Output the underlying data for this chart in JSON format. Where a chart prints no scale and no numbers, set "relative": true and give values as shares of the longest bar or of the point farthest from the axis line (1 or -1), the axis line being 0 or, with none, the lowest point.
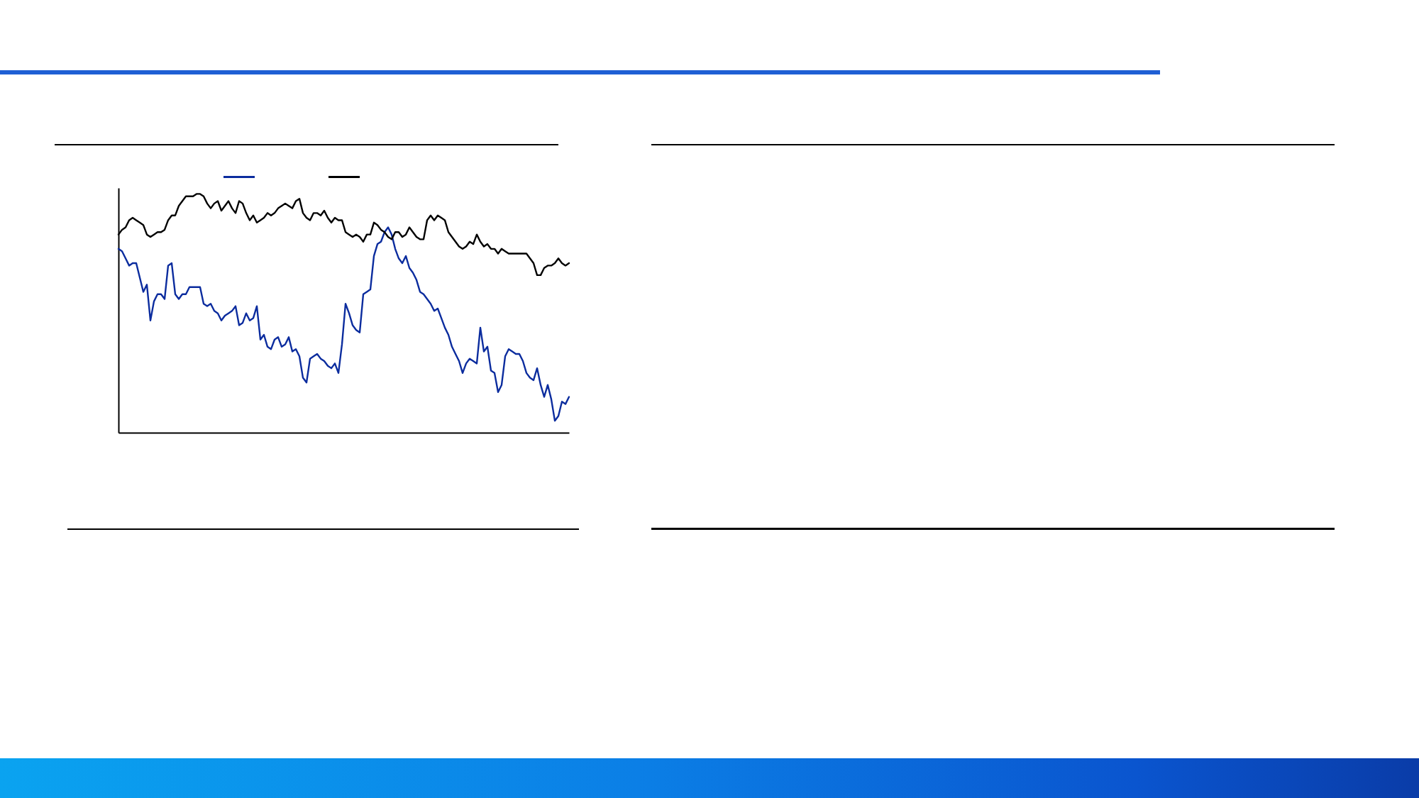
{
  "chart_data": {
    "type": "line",
    "relative": true,
    "line_style": "solid",
    "categories": [
      null,
      null,
      null,
      null,
      null,
      null,
      null,
      null,
      null,
      null,
      null,
      null,
      null,
      null,
      null,
      null,
      null,
      null,
      null,
      null,
      null,
      null,
      null,
      null,
      null,
      null,
      null,
      null,
      null,
      null,
      null,
      null,
      null,
      null,
      null,
      null,
      null,
      null,
      null,
      null,
      null,
      null,
      null,
      null,
      null,
      null,
      null,
      null,
      null,
      null,
      null,
      null,
      null,
      null,
      null,
      null,
      null,
      null,
      null,
      null,
      null,
      null,
      null,
      null,
      null,
      null,
      null,
      null,
      null,
      null,
      null,
      null,
      null,
      null,
      null,
      null,
      null,
      null,
      null,
      null,
      null,
      null,
      null,
      null,
      null,
      null,
      null,
      null,
      null,
      null,
      null,
      null,
      null,
      null,
      null,
      null,
      null,
      null,
      null,
      null,
      null,
      null,
      null,
      null,
      null,
      null,
      null,
      null,
      null,
      null,
      null,
      null,
      null,
      null,
      null,
      null,
      null,
      null,
      null,
      null,
      null,
      null,
      null,
      null,
      null,
      null,
      null,
      null
    ],
    "series": [
      {
        "color": "#0b2c9e",
        "values": [
          0.77,
          0.76,
          0.73,
          0.7,
          0.71,
          0.71,
          0.65,
          0.59,
          0.62,
          0.47,
          0.55,
          0.58,
          0.58,
          0.56,
          0.7,
          0.71,
          0.58,
          0.56,
          0.58,
          0.58,
          0.61,
          0.61,
          0.61,
          0.61,
          0.54,
          0.53,
          0.54,
          0.51,
          0.5,
          0.47,
          0.49,
          0.5,
          0.51,
          0.53,
          0.45,
          0.46,
          0.5,
          0.47,
          0.48,
          0.53,
          0.39,
          0.41,
          0.36,
          0.35,
          0.39,
          0.4,
          0.36,
          0.37,
          0.4,
          0.34,
          0.35,
          0.32,
          0.23,
          0.21,
          0.31,
          0.32,
          0.33,
          0.31,
          0.3,
          0.28,
          0.27,
          0.29,
          0.25,
          0.37,
          0.54,
          0.5,
          0.45,
          0.43,
          0.42,
          0.58,
          0.59,
          0.6,
          0.74,
          0.79,
          0.8,
          0.84,
          0.86,
          0.83,
          0.77,
          0.73,
          0.71,
          0.74,
          0.69,
          0.67,
          0.64,
          0.59,
          0.58,
          0.56,
          0.54,
          0.51,
          0.52,
          0.48,
          0.44,
          0.41,
          0.36,
          0.33,
          0.3,
          0.25,
          0.29,
          0.31,
          0.3,
          0.29,
          0.44,
          0.34,
          0.36,
          0.26,
          0.25,
          0.17,
          0.2,
          0.32,
          0.35,
          0.34,
          0.33,
          0.33,
          0.3,
          0.25,
          0.23,
          0.22,
          0.27,
          0.2,
          0.15,
          0.2,
          0.14,
          0.05,
          0.07,
          0.13,
          0.12,
          0.15
        ]
      },
      {
        "color": "#000000",
        "values": [
          0.83,
          0.85,
          0.86,
          0.89,
          0.9,
          0.89,
          0.88,
          0.87,
          0.83,
          0.82,
          0.83,
          0.84,
          0.84,
          0.85,
          0.89,
          0.91,
          0.91,
          0.95,
          0.97,
          0.99,
          0.99,
          0.99,
          1.0,
          1.0,
          0.99,
          0.96,
          0.94,
          0.96,
          0.97,
          0.93,
          0.95,
          0.97,
          0.94,
          0.92,
          0.97,
          0.96,
          0.92,
          0.89,
          0.91,
          0.88,
          0.89,
          0.9,
          0.92,
          0.91,
          0.92,
          0.94,
          0.95,
          0.96,
          0.95,
          0.94,
          0.97,
          0.98,
          0.92,
          0.9,
          0.89,
          0.92,
          0.92,
          0.91,
          0.93,
          0.9,
          0.88,
          0.9,
          0.89,
          0.89,
          0.84,
          0.83,
          0.82,
          0.83,
          0.82,
          0.8,
          0.83,
          0.83,
          0.88,
          0.87,
          0.85,
          0.84,
          0.82,
          0.81,
          0.84,
          0.84,
          0.82,
          0.83,
          0.86,
          0.84,
          0.82,
          0.81,
          0.81,
          0.89,
          0.91,
          0.89,
          0.91,
          0.9,
          0.89,
          0.84,
          0.82,
          0.8,
          0.78,
          0.77,
          0.78,
          0.8,
          0.79,
          0.83,
          0.8,
          0.78,
          0.79,
          0.77,
          0.77,
          0.75,
          0.77,
          0.76,
          0.75,
          0.75,
          0.75,
          0.75,
          0.75,
          0.75,
          0.73,
          0.71,
          0.66,
          0.66,
          0.69,
          0.7,
          0.7,
          0.71,
          0.73,
          0.71,
          0.7,
          0.71
        ]
      }
    ]
  }
}
